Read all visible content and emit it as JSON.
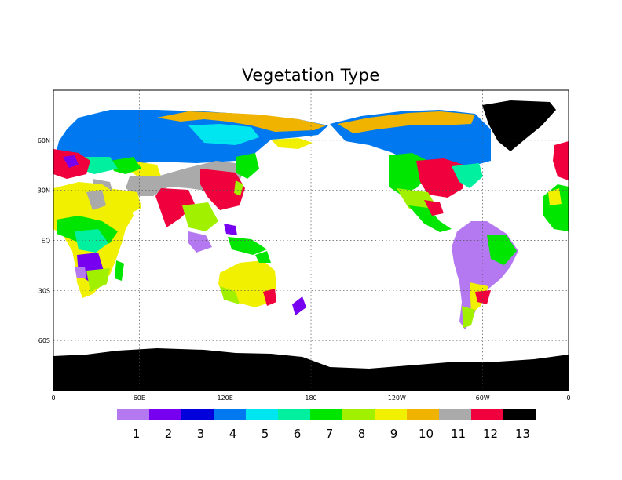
{
  "map": {
    "title": "Vegetation Type",
    "projection": "equirectangular",
    "lon_range": [
      0,
      360
    ],
    "lat_range": [
      -90,
      90
    ],
    "grid": "dotted",
    "x_ticks": [
      "0",
      "60E",
      "120E",
      "180",
      "120W",
      "60W",
      "0"
    ],
    "y_ticks": [
      "60N",
      "30N",
      "EQ",
      "30S",
      "60S"
    ]
  },
  "colorbar": {
    "classes": [
      {
        "label": "1",
        "color": "#b478f0"
      },
      {
        "label": "2",
        "color": "#7800f0"
      },
      {
        "label": "3",
        "color": "#0000dc"
      },
      {
        "label": "4",
        "color": "#0078f0"
      },
      {
        "label": "5",
        "color": "#00e6f0"
      },
      {
        "label": "6",
        "color": "#00f0a0"
      },
      {
        "label": "7",
        "color": "#00e600"
      },
      {
        "label": "8",
        "color": "#a0f000"
      },
      {
        "label": "9",
        "color": "#f0f000"
      },
      {
        "label": "10",
        "color": "#f0b400"
      },
      {
        "label": "11",
        "color": "#aaaaaa"
      },
      {
        "label": "12",
        "color": "#f0003c"
      },
      {
        "label": "13",
        "color": "#000000"
      }
    ]
  }
}
